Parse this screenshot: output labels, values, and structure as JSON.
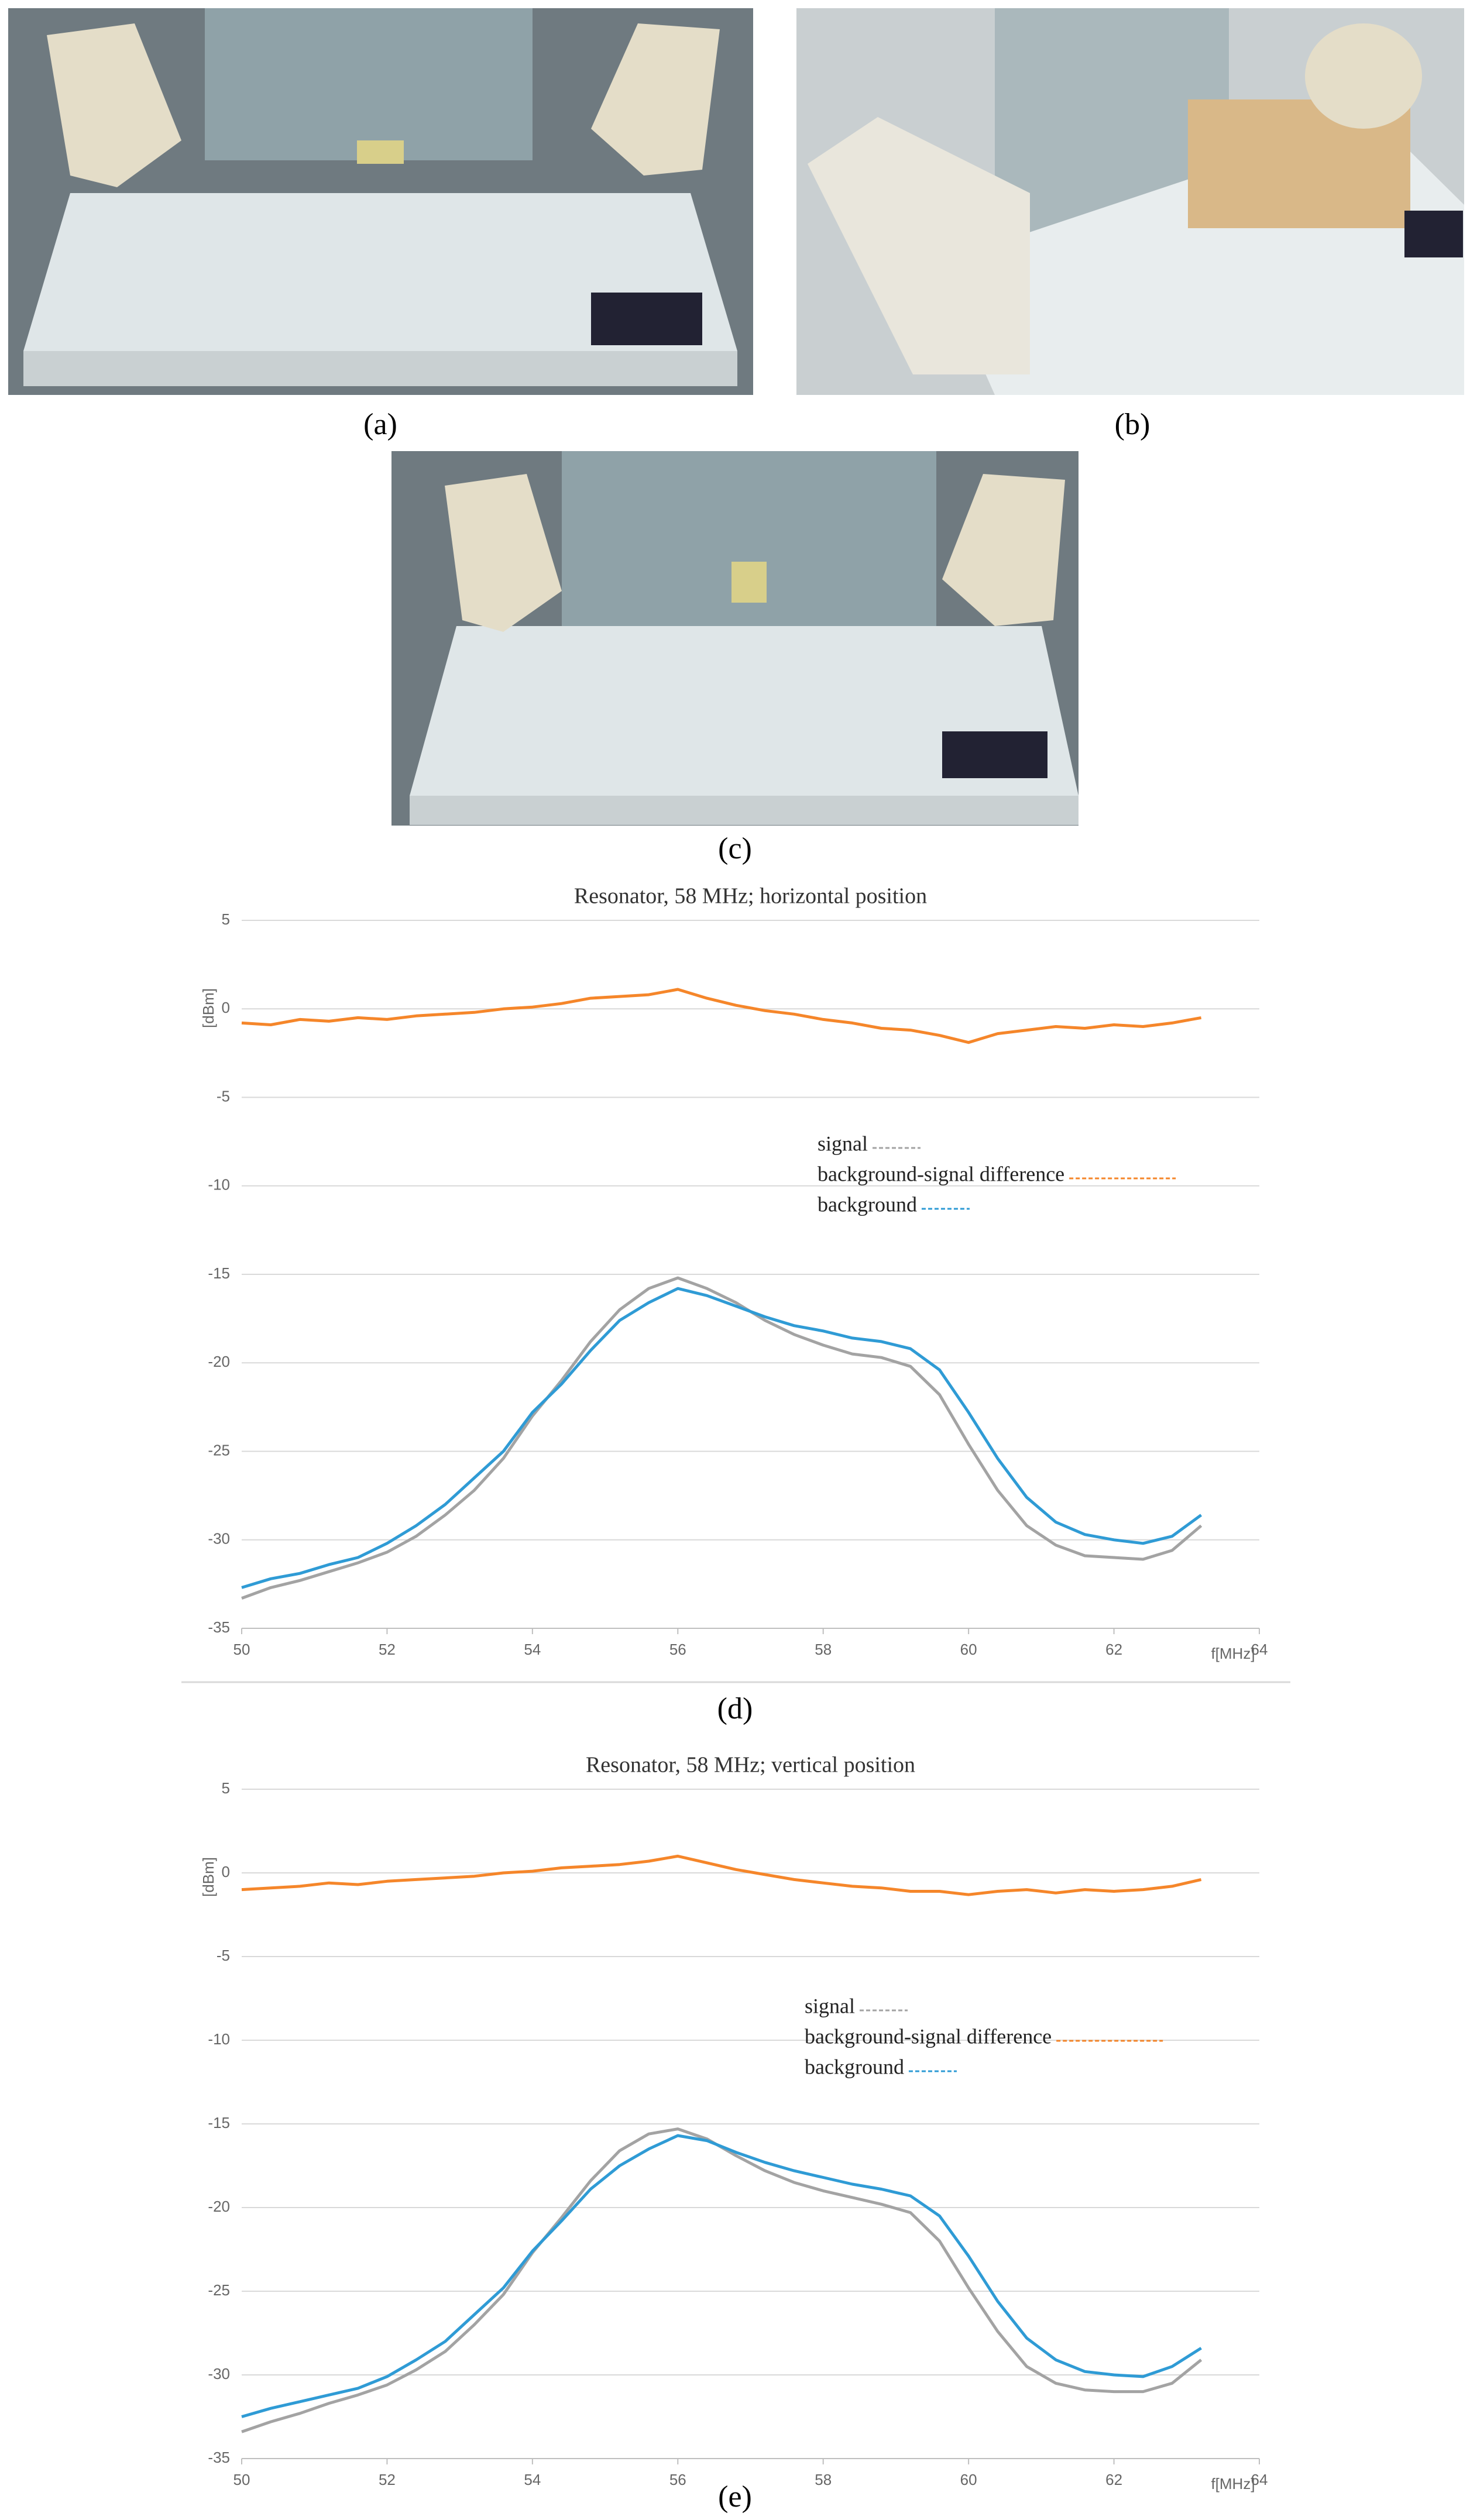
{
  "captions": [
    "(a)",
    "(b)",
    "(c)",
    "(d)",
    "(e)"
  ],
  "chart_data": [
    {
      "type": "line",
      "title": "Resonator, 58 MHz; horizontal position",
      "y_label": "[dBm]",
      "x_label": "f[MHz]",
      "x": [
        50,
        50.4,
        50.8,
        51.2,
        51.6,
        52,
        52.4,
        52.8,
        53.2,
        53.6,
        54,
        54.4,
        54.8,
        55.2,
        55.6,
        56,
        56.4,
        56.8,
        57.2,
        57.6,
        58,
        58.4,
        58.8,
        59.2,
        59.6,
        60,
        60.4,
        60.8,
        61.2,
        61.6,
        62,
        62.4,
        62.8,
        63.2
      ],
      "series": [
        {
          "name": "signal",
          "color": "#a3a3a3",
          "values": [
            -33.3,
            -32.7,
            -32.3,
            -31.8,
            -31.3,
            -30.7,
            -29.8,
            -28.6,
            -27.2,
            -25.4,
            -23,
            -21,
            -18.8,
            -17,
            -15.8,
            -15.2,
            -15.8,
            -16.6,
            -17.6,
            -18.4,
            -19,
            -19.5,
            -19.7,
            -20.2,
            -21.8,
            -24.6,
            -27.2,
            -29.2,
            -30.3,
            -30.9,
            -31,
            -31.1,
            -30.6,
            -29.2
          ]
        },
        {
          "name": "background-signal difference",
          "color": "#f5862a",
          "values": [
            -0.8,
            -0.9,
            -0.6,
            -0.7,
            -0.5,
            -0.6,
            -0.4,
            -0.3,
            -0.2,
            0,
            0.1,
            0.3,
            0.6,
            0.7,
            0.8,
            1.1,
            0.6,
            0.2,
            -0.1,
            -0.3,
            -0.6,
            -0.8,
            -1.1,
            -1.2,
            -1.5,
            -1.9,
            -1.4,
            -1.2,
            -1,
            -1.1,
            -0.9,
            -1,
            -0.8,
            -0.5
          ]
        },
        {
          "name": "background",
          "color": "#2f9bd5",
          "values": [
            -32.7,
            -32.2,
            -31.9,
            -31.4,
            -31,
            -30.2,
            -29.2,
            -28,
            -26.5,
            -25,
            -22.8,
            -21.2,
            -19.3,
            -17.6,
            -16.6,
            -15.8,
            -16.2,
            -16.8,
            -17.4,
            -17.9,
            -18.2,
            -18.6,
            -18.8,
            -19.2,
            -20.4,
            -22.8,
            -25.4,
            -27.6,
            -29,
            -29.7,
            -30,
            -30.2,
            -29.8,
            -28.6
          ]
        }
      ],
      "xlim": [
        50,
        64
      ],
      "xticks": [
        50,
        52,
        54,
        56,
        58,
        60,
        62,
        64
      ],
      "ylim": [
        -35,
        5
      ],
      "yticks": [
        5,
        0,
        -5,
        -10,
        -15,
        -20,
        -25,
        -30,
        -35
      ],
      "grid": true
    },
    {
      "type": "line",
      "title": "Resonator, 58 MHz; vertical position",
      "y_label": "[dBm]",
      "x_label": "f[MHz]",
      "x": [
        50,
        50.4,
        50.8,
        51.2,
        51.6,
        52,
        52.4,
        52.8,
        53.2,
        53.6,
        54,
        54.4,
        54.8,
        55.2,
        55.6,
        56,
        56.4,
        56.8,
        57.2,
        57.6,
        58,
        58.4,
        58.8,
        59.2,
        59.6,
        60,
        60.4,
        60.8,
        61.2,
        61.6,
        62,
        62.4,
        62.8,
        63.2
      ],
      "series": [
        {
          "name": "signal",
          "color": "#a3a3a3",
          "values": [
            -33.4,
            -32.8,
            -32.3,
            -31.7,
            -31.2,
            -30.6,
            -29.7,
            -28.6,
            -27,
            -25.2,
            -22.7,
            -20.6,
            -18.4,
            -16.6,
            -15.6,
            -15.3,
            -15.9,
            -16.9,
            -17.8,
            -18.5,
            -19,
            -19.4,
            -19.8,
            -20.3,
            -22,
            -24.8,
            -27.4,
            -29.5,
            -30.5,
            -30.9,
            -31,
            -31,
            -30.5,
            -29.1
          ]
        },
        {
          "name": "background-signal difference",
          "color": "#f5862a",
          "values": [
            -1,
            -0.9,
            -0.8,
            -0.6,
            -0.7,
            -0.5,
            -0.4,
            -0.3,
            -0.2,
            0,
            0.1,
            0.3,
            0.4,
            0.5,
            0.7,
            1,
            0.6,
            0.2,
            -0.1,
            -0.4,
            -0.6,
            -0.8,
            -0.9,
            -1.1,
            -1.1,
            -1.3,
            -1.1,
            -1,
            -1.2,
            -1,
            -1.1,
            -1,
            -0.8,
            -0.4
          ]
        },
        {
          "name": "background",
          "color": "#2f9bd5",
          "values": [
            -32.5,
            -32,
            -31.6,
            -31.2,
            -30.8,
            -30.1,
            -29.1,
            -28,
            -26.4,
            -24.8,
            -22.6,
            -20.8,
            -18.9,
            -17.5,
            -16.5,
            -15.7,
            -16,
            -16.7,
            -17.3,
            -17.8,
            -18.2,
            -18.6,
            -18.9,
            -19.3,
            -20.5,
            -22.9,
            -25.6,
            -27.8,
            -29.1,
            -29.8,
            -30,
            -30.1,
            -29.5,
            -28.4
          ]
        }
      ],
      "xlim": [
        50,
        64
      ],
      "xticks": [
        50,
        52,
        54,
        56,
        58,
        60,
        62,
        64
      ],
      "ylim": [
        -35,
        5
      ],
      "yticks": [
        5,
        0,
        -5,
        -10,
        -15,
        -20,
        -25,
        -30,
        -35
      ],
      "grid": true
    }
  ]
}
